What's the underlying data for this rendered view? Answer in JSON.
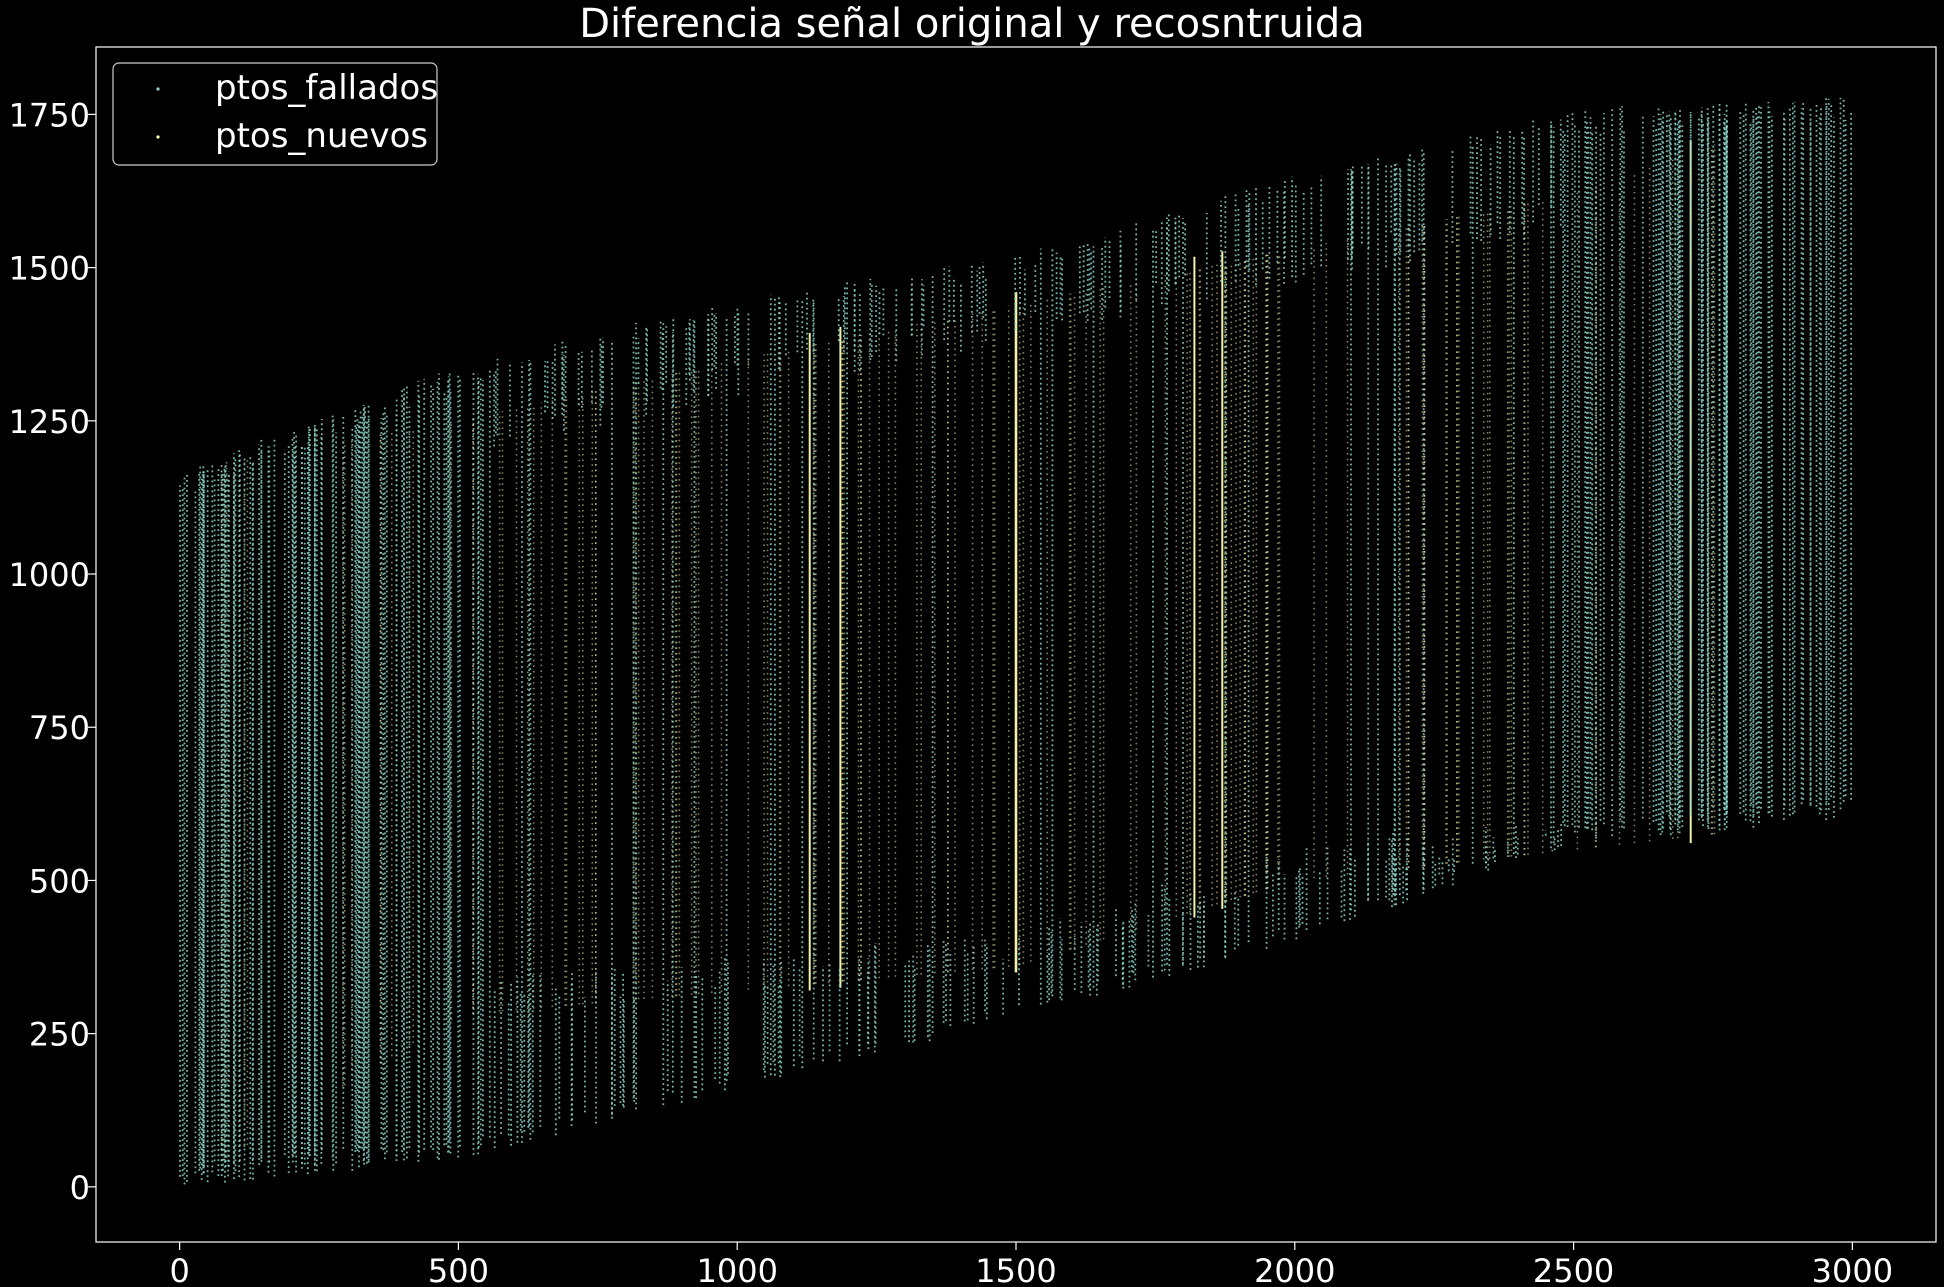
{
  "chart_data": {
    "type": "scatter",
    "title": "Diferencia señal original y recosntruida",
    "xlabel": "",
    "ylabel": "",
    "xlim": [
      -150,
      3150
    ],
    "ylim": [
      -90,
      1860
    ],
    "x_ticks": [
      0,
      500,
      1000,
      1500,
      2000,
      2500,
      3000
    ],
    "y_ticks": [
      0,
      250,
      500,
      750,
      1000,
      1250,
      1500,
      1750
    ],
    "grid": false,
    "legend_position": "top-left",
    "background": "#000000",
    "series": [
      {
        "name": "ptos_fallados",
        "color": "#8dd3c7",
        "marker": "dot",
        "lower_edge": {
          "x": [
            0,
            500,
            1000,
            1500,
            2000,
            2500,
            3000
          ],
          "y": [
            0,
            40,
            160,
            270,
            400,
            560,
            600
          ]
        },
        "upper_edge": {
          "x": [
            0,
            500,
            1000,
            1500,
            2000,
            2500,
            3000
          ],
          "y": [
            1170,
            1340,
            1450,
            1520,
            1650,
            1760,
            1780
          ]
        },
        "band_top": {
          "x": [
            0,
            500,
            1000,
            1500,
            2000,
            2500,
            3000
          ],
          "y": [
            1170,
            1250,
            1350,
            1440,
            1530,
            1620,
            1780
          ]
        },
        "band_bottom": {
          "x": [
            0,
            500,
            1000,
            1500,
            2000,
            2500,
            3000
          ],
          "y": [
            0,
            280,
            320,
            360,
            500,
            550,
            600
          ]
        }
      },
      {
        "name": "ptos_nuevos",
        "color": "#ffffb3",
        "marker": "dot",
        "prominent_columns_x": [
          1500,
          1185,
          1820,
          2710,
          1130,
          1870
        ],
        "range_note": "vertical columns spanning between lower and upper edges"
      }
    ]
  }
}
